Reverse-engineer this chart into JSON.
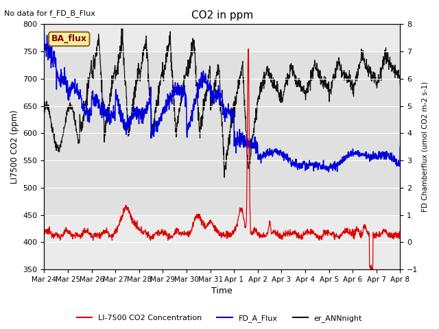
{
  "title": "CO2 in ppm",
  "top_left_text": "No data for f_FD_B_Flux",
  "annotation_box": "BA_flux",
  "ylabel_left": "LI7500 CO2 (ppm)",
  "ylabel_right": "FD Chamberflux (umol CO2 m-2 s-1)",
  "xlabel": "Time",
  "ylim_left": [
    350,
    800
  ],
  "ylim_right": [
    -1.0,
    8.0
  ],
  "yticks_left": [
    350,
    400,
    450,
    500,
    550,
    600,
    650,
    700,
    750,
    800
  ],
  "yticks_right": [
    -1.0,
    0.0,
    1.0,
    2.0,
    3.0,
    4.0,
    5.0,
    6.0,
    7.0,
    8.0
  ],
  "xtick_labels": [
    "Mar 24",
    "Mar 25",
    "Mar 26",
    "Mar 27",
    "Mar 28",
    "Mar 29",
    "Mar 30",
    "Mar 31",
    "Apr 1",
    "Apr 2",
    "Apr 3",
    "Apr 4",
    "Apr 5",
    "Apr 6",
    "Apr 7",
    "Apr 8"
  ],
  "color_red": "#dd0000",
  "color_blue": "#0000dd",
  "color_black": "#111111",
  "legend_entries": [
    "LI-7500 CO2 Concentration",
    "FD_A_Flux",
    "er_ANNnight"
  ],
  "shading_color": "#e0e0e0",
  "shading_ylim": [
    450,
    750
  ],
  "background_color": "#ebebeb",
  "figsize": [
    6.4,
    4.8
  ],
  "dpi": 100
}
